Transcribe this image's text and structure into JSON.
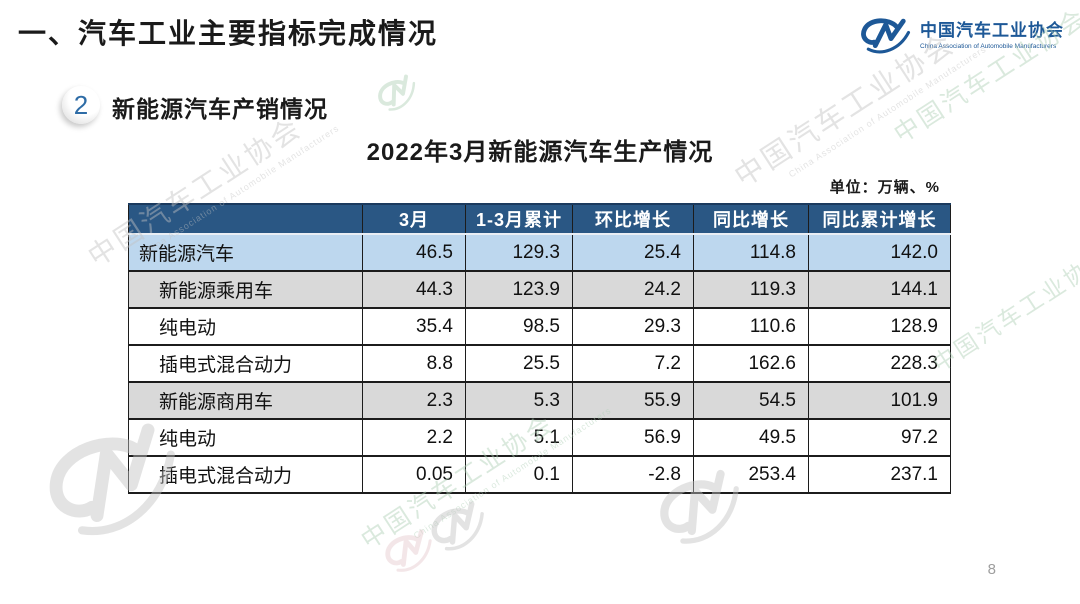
{
  "header": {
    "title": "一、汽车工业主要指标完成情况"
  },
  "logo": {
    "name_cn": "中国汽车工业协会",
    "name_en": "China Association of Automobile Manufacturers"
  },
  "section": {
    "badge_number": "2",
    "heading": "新能源汽车产销情况"
  },
  "table": {
    "title": "2022年3月新能源汽车生产情况",
    "unit": "单位：万辆、%",
    "headers": [
      "",
      "3月",
      "1-3月累计",
      "环比增长",
      "同比增长",
      "同比累计增长"
    ],
    "rows": [
      {
        "label": "新能源汽车",
        "values": [
          "46.5",
          "129.3",
          "25.4",
          "114.8",
          "142.0"
        ],
        "style": "blue",
        "indent": 0
      },
      {
        "label": "新能源乘用车",
        "values": [
          "44.3",
          "123.9",
          "24.2",
          "119.3",
          "144.1"
        ],
        "style": "gray",
        "indent": 1
      },
      {
        "label": "纯电动",
        "values": [
          "35.4",
          "98.5",
          "29.3",
          "110.6",
          "128.9"
        ],
        "style": "white",
        "indent": 1
      },
      {
        "label": "插电式混合动力",
        "values": [
          "8.8",
          "25.5",
          "7.2",
          "162.6",
          "228.3"
        ],
        "style": "white",
        "indent": 1
      },
      {
        "label": "新能源商用车",
        "values": [
          "2.3",
          "5.3",
          "55.9",
          "54.5",
          "101.9"
        ],
        "style": "gray",
        "indent": 1
      },
      {
        "label": "纯电动",
        "values": [
          "2.2",
          "5.1",
          "56.9",
          "49.5",
          "97.2"
        ],
        "style": "white",
        "indent": 1
      },
      {
        "label": "插电式混合动力",
        "values": [
          "0.05",
          "0.1",
          "-2.8",
          "253.4",
          "237.1"
        ],
        "style": "white",
        "indent": 1
      }
    ]
  },
  "watermark": {
    "text": "中国汽车工业协会",
    "subtext": "China Association of Automobile Manufacturers"
  },
  "footer": {
    "page_number": "8"
  },
  "colors": {
    "accent_blue": "#1D5897",
    "table_header_bg": "#2A5784",
    "row_highlight_blue": "#BDD7EE",
    "row_gray": "#D9D9D9",
    "border_dark": "#1C1C1C",
    "watermark_gray": "#C3C3C3",
    "watermark_green": "#AECFB6"
  }
}
